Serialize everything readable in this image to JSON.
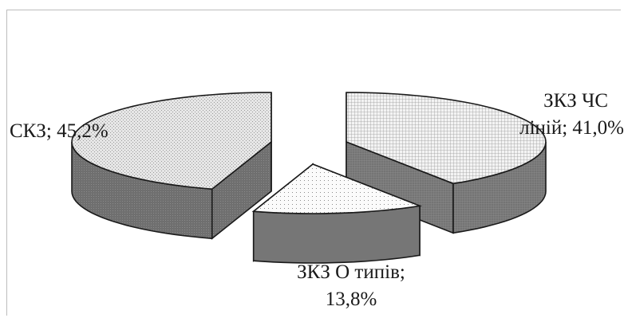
{
  "chart_data": {
    "type": "pie",
    "style": "3d-exploded",
    "title": "",
    "slices": [
      {
        "name": "СКЗ",
        "value": 45.2,
        "label_lines": [
          "СКЗ; 45,2%"
        ],
        "pattern": "fine-dots-light-gray",
        "side_color": "#6e6e6e"
      },
      {
        "name": "ЗКЗ ЧС ліній",
        "value": 41.0,
        "label_lines": [
          "ЗКЗ ЧС",
          "ліній; 41,0%"
        ],
        "pattern": "grid-light",
        "side_color": "#7a7a7a"
      },
      {
        "name": "ЗКЗ О типів",
        "value": 13.8,
        "label_lines": [
          "ЗКЗ О типів;",
          "13,8%"
        ],
        "pattern": "sparse-dots-white",
        "side_color": "#767676"
      }
    ],
    "legend": "none",
    "grid": false
  }
}
